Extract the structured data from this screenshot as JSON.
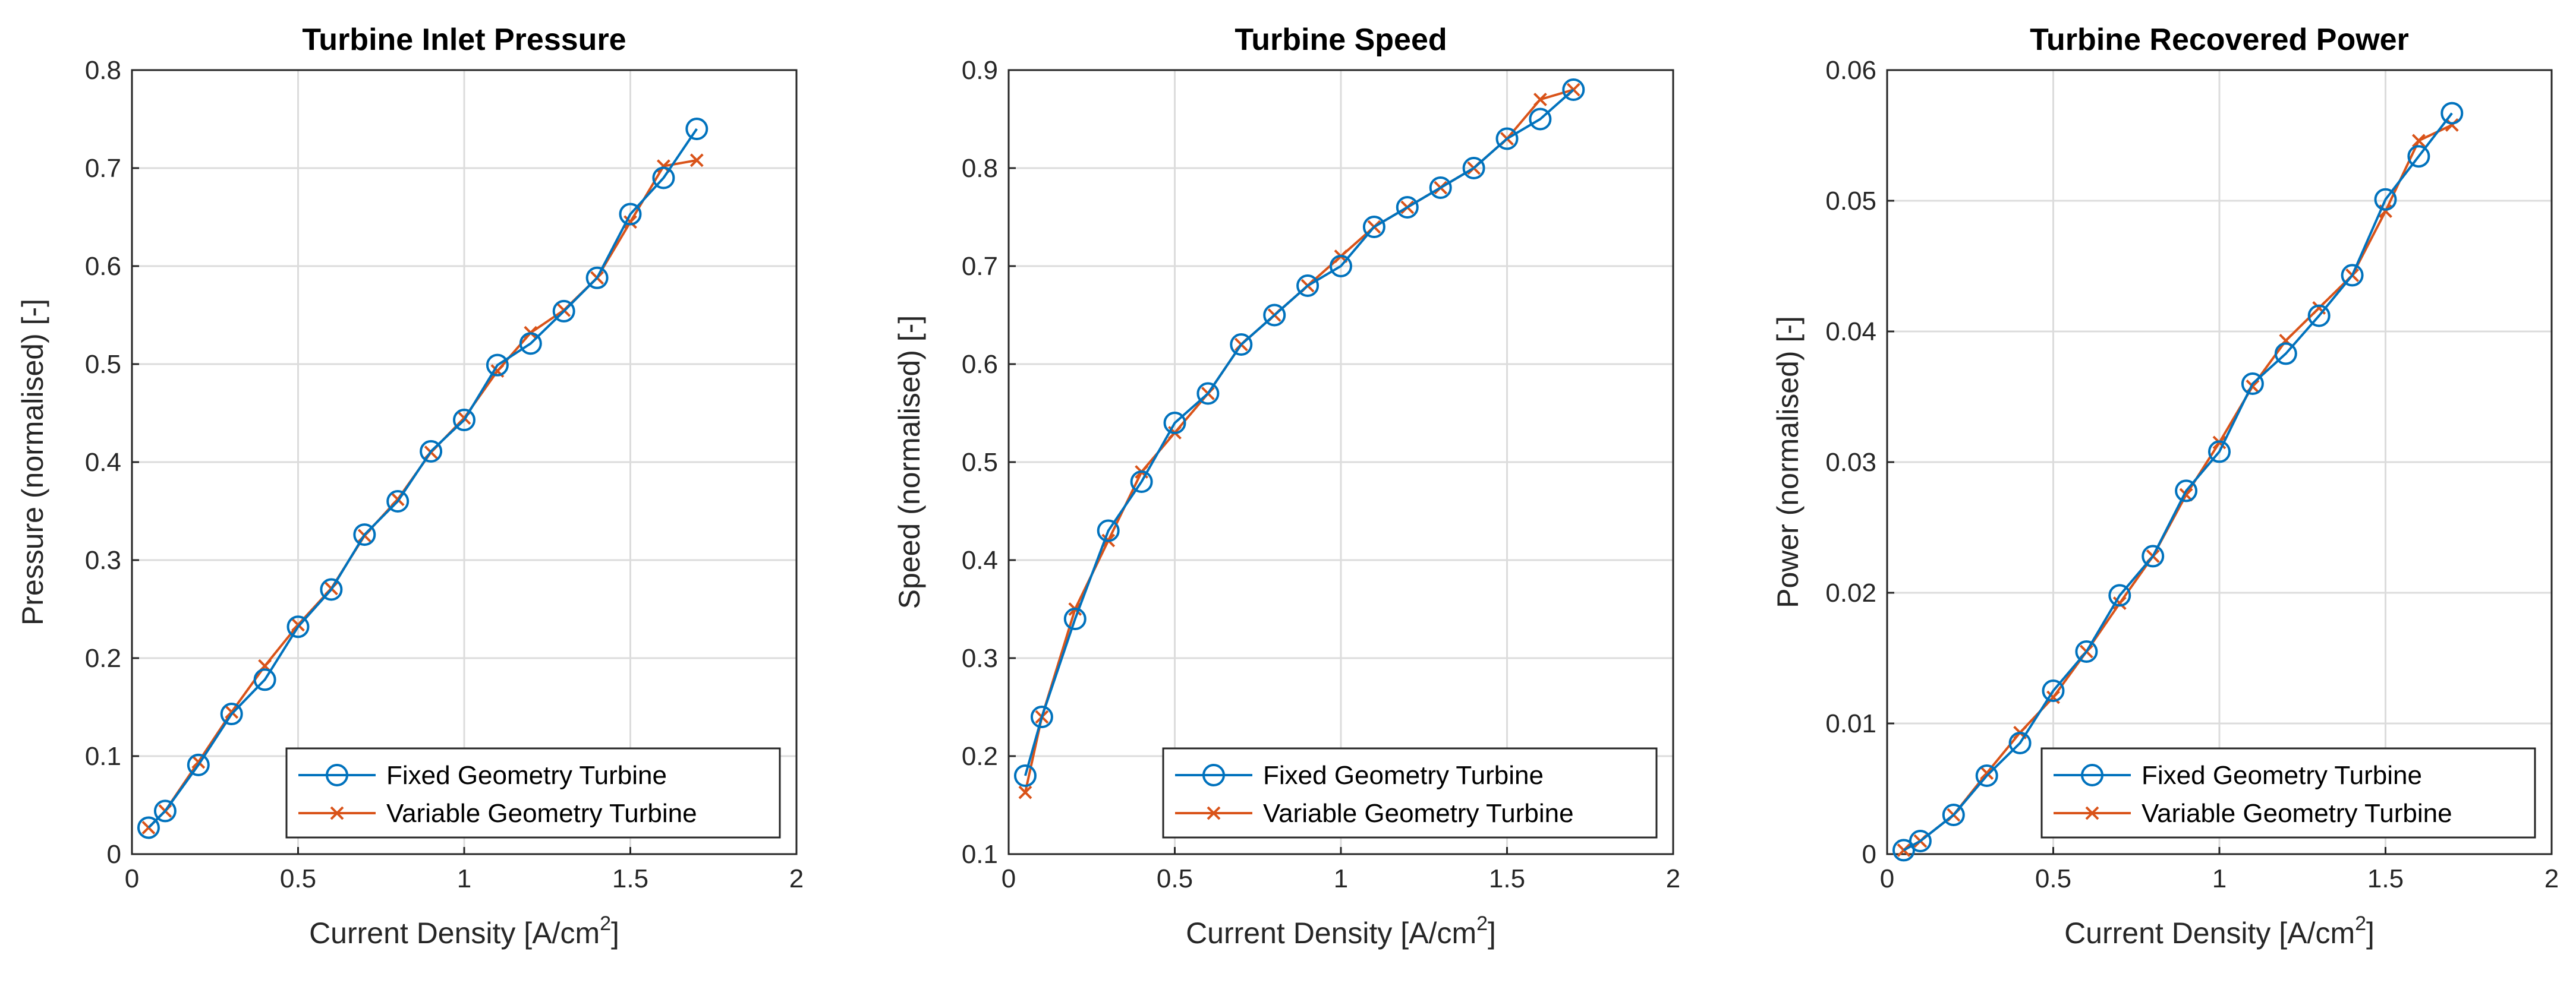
{
  "chart_data": [
    {
      "type": "line",
      "title": "Turbine Inlet Pressure",
      "xlabel": "Current Density [A/cm",
      "xlabel_sup": "2",
      "xlabel_end": "]",
      "ylabel": "Pressure (normalised) [-]",
      "xlim": [
        0,
        2
      ],
      "ylim": [
        0,
        0.8
      ],
      "xticks": [
        "0",
        "0.5",
        "1",
        "1.5",
        "2"
      ],
      "yticks": [
        "0",
        "0.1",
        "0.2",
        "0.3",
        "0.4",
        "0.5",
        "0.6",
        "0.7",
        "0.8"
      ],
      "legend_position": "bottom-right",
      "series": [
        {
          "name": "Fixed Geometry Turbine",
          "color": "#0072BD",
          "marker": "circle",
          "x": [
            0.05,
            0.1,
            0.2,
            0.3,
            0.4,
            0.5,
            0.6,
            0.7,
            0.8,
            0.9,
            1.0,
            1.1,
            1.2,
            1.3,
            1.4,
            1.5,
            1.6,
            1.7
          ],
          "y": [
            0.027,
            0.044,
            0.091,
            0.143,
            0.178,
            0.232,
            0.27,
            0.326,
            0.36,
            0.411,
            0.443,
            0.499,
            0.521,
            0.554,
            0.588,
            0.653,
            0.69,
            0.74
          ]
        },
        {
          "name": "Variable Geometry Turbine",
          "color": "#D95319",
          "marker": "x",
          "x": [
            0.05,
            0.1,
            0.2,
            0.3,
            0.4,
            0.5,
            0.6,
            0.7,
            0.8,
            0.9,
            1.0,
            1.1,
            1.2,
            1.3,
            1.4,
            1.5,
            1.6,
            1.7
          ],
          "y": [
            0.027,
            0.044,
            0.094,
            0.145,
            0.192,
            0.234,
            0.271,
            0.325,
            0.362,
            0.41,
            0.445,
            0.493,
            0.532,
            0.555,
            0.588,
            0.645,
            0.702,
            0.708
          ]
        }
      ]
    },
    {
      "type": "line",
      "title": "Turbine Speed",
      "xlabel": "Current Density [A/cm",
      "xlabel_sup": "2",
      "xlabel_end": "]",
      "ylabel": "Speed (normalised) [-]",
      "xlim": [
        0,
        2
      ],
      "ylim": [
        0.1,
        0.9
      ],
      "xticks": [
        "0",
        "0.5",
        "1",
        "1.5",
        "2"
      ],
      "yticks": [
        "0.1",
        "0.2",
        "0.3",
        "0.4",
        "0.5",
        "0.6",
        "0.7",
        "0.8",
        "0.9"
      ],
      "legend_position": "bottom-right",
      "series": [
        {
          "name": "Fixed Geometry Turbine",
          "color": "#0072BD",
          "marker": "circle",
          "x": [
            0.05,
            0.1,
            0.2,
            0.3,
            0.4,
            0.5,
            0.6,
            0.7,
            0.8,
            0.9,
            1.0,
            1.1,
            1.2,
            1.3,
            1.4,
            1.5,
            1.6,
            1.7
          ],
          "y": [
            0.18,
            0.24,
            0.34,
            0.43,
            0.48,
            0.54,
            0.57,
            0.62,
            0.65,
            0.68,
            0.7,
            0.74,
            0.76,
            0.78,
            0.8,
            0.83,
            0.85,
            0.88
          ]
        },
        {
          "name": "Variable Geometry Turbine",
          "color": "#D95319",
          "marker": "x",
          "x": [
            0.05,
            0.1,
            0.2,
            0.3,
            0.4,
            0.5,
            0.6,
            0.7,
            0.8,
            0.9,
            1.0,
            1.1,
            1.2,
            1.3,
            1.4,
            1.5,
            1.6,
            1.7
          ],
          "y": [
            0.163,
            0.24,
            0.35,
            0.42,
            0.49,
            0.53,
            0.57,
            0.62,
            0.65,
            0.68,
            0.71,
            0.74,
            0.76,
            0.78,
            0.8,
            0.83,
            0.87,
            0.88
          ]
        }
      ]
    },
    {
      "type": "line",
      "title": "Turbine Recovered Power",
      "xlabel": "Current Density [A/cm",
      "xlabel_sup": "2",
      "xlabel_end": "]",
      "ylabel": "Power (normalised) [-]",
      "xlim": [
        0,
        2
      ],
      "ylim": [
        0,
        0.06
      ],
      "xticks": [
        "0",
        "0.5",
        "1",
        "1.5",
        "2"
      ],
      "yticks": [
        "0",
        "0.01",
        "0.02",
        "0.03",
        "0.04",
        "0.05",
        "0.06"
      ],
      "legend_position": "bottom-right",
      "series": [
        {
          "name": "Fixed Geometry Turbine",
          "color": "#0072BD",
          "marker": "circle",
          "x": [
            0.05,
            0.1,
            0.2,
            0.3,
            0.4,
            0.5,
            0.6,
            0.7,
            0.8,
            0.9,
            1.0,
            1.1,
            1.2,
            1.3,
            1.4,
            1.5,
            1.6,
            1.7
          ],
          "y": [
            0.0003,
            0.001,
            0.003,
            0.006,
            0.0085,
            0.0125,
            0.0155,
            0.0198,
            0.0228,
            0.0278,
            0.0308,
            0.036,
            0.0383,
            0.0412,
            0.0443,
            0.0501,
            0.0534,
            0.0567
          ]
        },
        {
          "name": "Variable Geometry Turbine",
          "color": "#D95319",
          "marker": "x",
          "x": [
            0.05,
            0.1,
            0.2,
            0.3,
            0.4,
            0.5,
            0.6,
            0.7,
            0.8,
            0.9,
            1.0,
            1.1,
            1.2,
            1.3,
            1.4,
            1.5,
            1.6,
            1.7
          ],
          "y": [
            0.0003,
            0.001,
            0.003,
            0.0062,
            0.0093,
            0.012,
            0.0155,
            0.0192,
            0.0228,
            0.0275,
            0.0315,
            0.0358,
            0.0393,
            0.0418,
            0.0443,
            0.0492,
            0.0546,
            0.0558
          ]
        }
      ]
    }
  ]
}
